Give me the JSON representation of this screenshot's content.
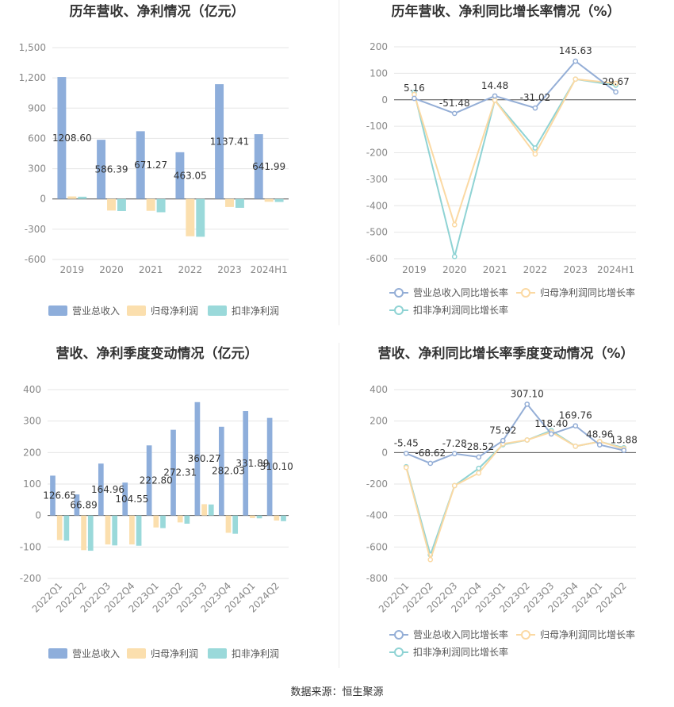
{
  "colors": {
    "revenue": "#8eaedb",
    "net_profit": "#fbdfae",
    "deducted_profit": "#9ad9da",
    "revenue_line": "#94aed6",
    "net_profit_line": "#fbd9a3",
    "deducted_line": "#8fd3d4",
    "grid": "#e6e6e6",
    "axis_text": "#888888",
    "title_text": "#333333",
    "label_text": "#333333"
  },
  "source": "数据来源：恒生聚源",
  "chart_data": [
    {
      "id": "annual_amount",
      "type": "bar",
      "title": "历年营收、净利情况（亿元）",
      "categories": [
        "2019",
        "2020",
        "2021",
        "2022",
        "2023",
        "2024H1"
      ],
      "ylim": [
        -600,
        1500
      ],
      "yticks": [
        -600,
        -300,
        0,
        300,
        600,
        900,
        1200,
        1500
      ],
      "ytick_labels": [
        "-600",
        "-300",
        "0",
        "300",
        "600",
        "900",
        "1,200",
        "1,500"
      ],
      "series": [
        {
          "name": "营业总收入",
          "values": [
            1208.6,
            586.39,
            671.27,
            463.05,
            1137.41,
            641.99
          ],
          "labels": [
            "1208.60",
            "586.39",
            "671.27",
            "463.05",
            "1137.41",
            "641.99"
          ]
        },
        {
          "name": "归母净利润",
          "values": [
            25,
            -115,
            -118,
            -370,
            -80,
            -28
          ]
        },
        {
          "name": "扣非净利润",
          "values": [
            22,
            -120,
            -132,
            -375,
            -88,
            -30
          ]
        }
      ],
      "legend": [
        "营业总收入",
        "归母净利润",
        "扣非净利润"
      ]
    },
    {
      "id": "annual_growth",
      "type": "line",
      "title": "历年营收、净利同比增长率情况（%）",
      "categories": [
        "2019",
        "2020",
        "2021",
        "2022",
        "2023",
        "2024H1"
      ],
      "ylim": [
        -600,
        200
      ],
      "yticks": [
        -600,
        -500,
        -400,
        -300,
        -200,
        -100,
        0,
        100,
        200
      ],
      "ytick_labels": [
        "-600",
        "-500",
        "-400",
        "-300",
        "-200",
        "-100",
        "0",
        "100",
        "200"
      ],
      "series": [
        {
          "name": "营业总收入同比增长率",
          "values": [
            5.16,
            -51.48,
            14.48,
            -31.02,
            145.63,
            29.67
          ],
          "labels": [
            "5.16",
            "-51.48",
            "14.48",
            "-31.02",
            "145.63",
            "29.67"
          ]
        },
        {
          "name": "归母净利润同比增长率",
          "values": [
            20,
            -472,
            -2,
            -205,
            78,
            62
          ]
        },
        {
          "name": "扣非净利润同比增长率",
          "values": [
            28,
            -592,
            -2,
            -182,
            78,
            55
          ]
        }
      ],
      "legend": [
        "营业总收入同比增长率",
        "归母净利润同比增长率",
        "扣非净利润同比增长率"
      ]
    },
    {
      "id": "quarterly_amount",
      "type": "bar",
      "title": "营收、净利季度变动情况（亿元）",
      "categories": [
        "2022Q1",
        "2022Q2",
        "2022Q3",
        "2022Q4",
        "2023Q1",
        "2023Q2",
        "2023Q3",
        "2023Q4",
        "2024Q1",
        "2024Q2"
      ],
      "ylim": [
        -200,
        400
      ],
      "yticks": [
        -200,
        -100,
        0,
        100,
        200,
        300,
        400
      ],
      "ytick_labels": [
        "-200",
        "-100",
        "0",
        "100",
        "200",
        "300",
        "400"
      ],
      "series": [
        {
          "name": "营业总收入",
          "values": [
            126.65,
            66.89,
            164.96,
            104.55,
            222.8,
            272.31,
            360.27,
            282.03,
            331.89,
            310.1
          ],
          "labels": [
            "126.65",
            "66.89",
            "164.96",
            "104.55",
            "222.80",
            "272.31",
            "360.27",
            "282.03",
            "331.89",
            "310.10"
          ]
        },
        {
          "name": "归母净利润",
          "values": [
            -78,
            -110,
            -92,
            -92,
            -38,
            -22,
            36,
            -55,
            -8,
            -16
          ]
        },
        {
          "name": "扣非净利润",
          "values": [
            -80,
            -112,
            -95,
            -96,
            -40,
            -26,
            35,
            -58,
            -9,
            -18
          ]
        }
      ],
      "legend": [
        "营业总收入",
        "归母净利润",
        "扣非净利润"
      ]
    },
    {
      "id": "quarterly_growth",
      "type": "line",
      "title": "营收、净利同比增长率季度变动情况（%）",
      "categories": [
        "2022Q1",
        "2022Q2",
        "2022Q3",
        "2022Q4",
        "2023Q1",
        "2023Q2",
        "2023Q3",
        "2023Q4",
        "2024Q1",
        "2024Q2"
      ],
      "ylim": [
        -800,
        400
      ],
      "yticks": [
        -800,
        -600,
        -400,
        -200,
        0,
        200,
        400
      ],
      "ytick_labels": [
        "-800",
        "-600",
        "-400",
        "-200",
        "0",
        "200",
        "400"
      ],
      "series": [
        {
          "name": "营业总收入同比增长率",
          "values": [
            -5.45,
            -68.62,
            -7.28,
            -28.52,
            75.92,
            307.1,
            118.4,
            169.76,
            48.96,
            13.88
          ],
          "labels": [
            "-5.45",
            "-68.62",
            "-7.28",
            "-28.52",
            "75.92",
            "307.10",
            "118.40",
            "169.76",
            "48.96",
            "13.88"
          ]
        },
        {
          "name": "归母净利润同比增长率",
          "values": [
            -95,
            -680,
            -210,
            -130,
            55,
            80,
            130,
            40,
            70,
            25
          ]
        },
        {
          "name": "扣非净利润同比增长率",
          "values": [
            -90,
            -650,
            -210,
            -100,
            50,
            80,
            140,
            40,
            70,
            30
          ]
        }
      ],
      "legend": [
        "营业总收入同比增长率",
        "归母净利润同比增长率",
        "扣非净利润同比增长率"
      ]
    }
  ]
}
